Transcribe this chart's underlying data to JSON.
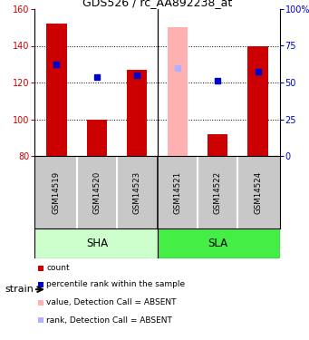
{
  "title": "GDS526 / rc_AA892238_at",
  "samples": [
    "GSM14519",
    "GSM14520",
    "GSM14523",
    "GSM14521",
    "GSM14522",
    "GSM14524"
  ],
  "red_bar_values": [
    152,
    100,
    127,
    null,
    92,
    140
  ],
  "blue_dot_values": [
    130,
    123,
    124,
    null,
    121,
    126
  ],
  "pink_bar_values": [
    null,
    null,
    null,
    150,
    null,
    null
  ],
  "light_blue_dot_values": [
    null,
    null,
    null,
    128,
    null,
    null
  ],
  "ylim_left": [
    80,
    160
  ],
  "y_ticks_left": [
    80,
    100,
    120,
    140,
    160
  ],
  "y_ticks_right": [
    0,
    25,
    50,
    75,
    100
  ],
  "y_right_labels": [
    "0",
    "25",
    "50",
    "75",
    "100%"
  ],
  "bar_width": 0.5,
  "dot_size": 5,
  "red_color": "#cc0000",
  "blue_color": "#0000cc",
  "pink_color": "#ffb0b0",
  "light_blue_color": "#b0b0ff",
  "gray_cell_color": "#c8c8c8",
  "sha_color": "#ccffcc",
  "sla_color": "#44ee44",
  "legend_labels": [
    "count",
    "percentile rank within the sample",
    "value, Detection Call = ABSENT",
    "rank, Detection Call = ABSENT"
  ],
  "legend_colors": [
    "#cc0000",
    "#0000cc",
    "#ffb0b0",
    "#b0b0ff"
  ]
}
